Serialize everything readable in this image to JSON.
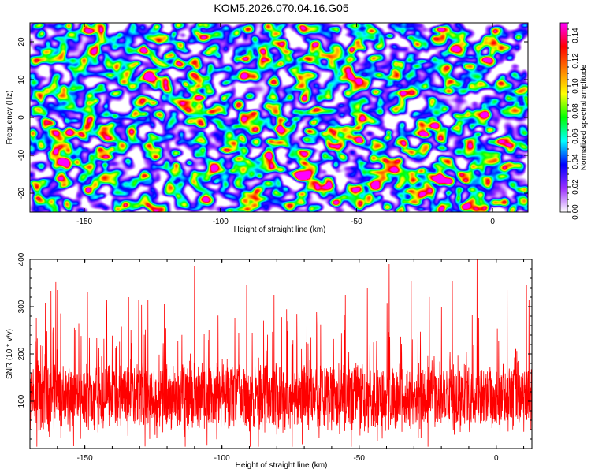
{
  "chart_data": [
    {
      "type": "heatmap",
      "title": "KOM5.2026.070.04.16.G05",
      "xlabel": "Height of straight line (km)",
      "ylabel": "Frequency (Hz)",
      "xlim": [
        -170,
        13
      ],
      "ylim": [
        -25,
        25
      ],
      "x_ticks": [
        -150,
        -100,
        -50,
        0
      ],
      "y_ticks": [
        -20,
        -10,
        0,
        10,
        20
      ],
      "colorbar": {
        "label": "Normalized spectral amplitude",
        "range": [
          0,
          0.15
        ],
        "ticks": [
          "0.00",
          "0.02",
          "0.04",
          "0.06",
          "0.08",
          "0.10",
          "0.12",
          "0.14"
        ],
        "colors": [
          "#ffffff",
          "#9b30ff",
          "#0000ff",
          "#00ffff",
          "#00ff00",
          "#ffff00",
          "#ff8000",
          "#ff0000",
          "#ff00ff"
        ]
      },
      "grid": false,
      "hotspots": [
        {
          "x": -135,
          "y": -23,
          "value": 0.15
        },
        {
          "x": -127,
          "y": -23,
          "value": 0.14
        },
        {
          "x": -60,
          "y": -3,
          "value": 0.12
        },
        {
          "x": -113,
          "y": 9,
          "value": 0.11
        },
        {
          "x": -99,
          "y": 5,
          "value": 0.1
        },
        {
          "x": -124,
          "y": 4,
          "value": 0.1
        },
        {
          "x": -47,
          "y": 8,
          "value": 0.1
        },
        {
          "x": -118,
          "y": 17,
          "value": 0.09
        },
        {
          "x": -147,
          "y": -2,
          "value": 0.09
        },
        {
          "x": -140,
          "y": -8,
          "value": 0.09
        },
        {
          "x": -165,
          "y": -8,
          "value": 0.08
        },
        {
          "x": -30,
          "y": 8,
          "value": 0.09
        },
        {
          "x": -3,
          "y": -18,
          "value": 0.09
        },
        {
          "x": -16,
          "y": -23,
          "value": 0.08
        },
        {
          "x": 8,
          "y": 3,
          "value": 0.09
        },
        {
          "x": -27,
          "y": -20,
          "value": 0.08
        },
        {
          "x": -73,
          "y": -2,
          "value": 0.08
        },
        {
          "x": -92,
          "y": -18,
          "value": 0.07
        }
      ]
    },
    {
      "type": "line",
      "xlabel": "Height of straight line (km)",
      "ylabel": "SNR (10 * v/v)",
      "xlim": [
        -170,
        13
      ],
      "ylim": [
        0,
        400
      ],
      "x_ticks": [
        -150,
        -100,
        -50,
        0
      ],
      "y_ticks": [
        100,
        200,
        300,
        400
      ],
      "color": "#ff0000",
      "grid": false,
      "baseline": 110,
      "spread": 60,
      "peaks": [
        {
          "x": -160,
          "y": 335
        },
        {
          "x": -149,
          "y": 330
        },
        {
          "x": -142,
          "y": 315
        },
        {
          "x": -134,
          "y": 320
        },
        {
          "x": -127,
          "y": 315
        },
        {
          "x": -121,
          "y": 305
        },
        {
          "x": -110,
          "y": 385
        },
        {
          "x": -91,
          "y": 345
        },
        {
          "x": -81,
          "y": 325
        },
        {
          "x": -69,
          "y": 335
        },
        {
          "x": -55,
          "y": 325
        },
        {
          "x": -47,
          "y": 340
        },
        {
          "x": -39,
          "y": 390
        },
        {
          "x": -31,
          "y": 355
        },
        {
          "x": -16,
          "y": 355
        },
        {
          "x": -7,
          "y": 400
        },
        {
          "x": 4,
          "y": 335
        },
        {
          "x": 11,
          "y": 345
        }
      ]
    }
  ]
}
